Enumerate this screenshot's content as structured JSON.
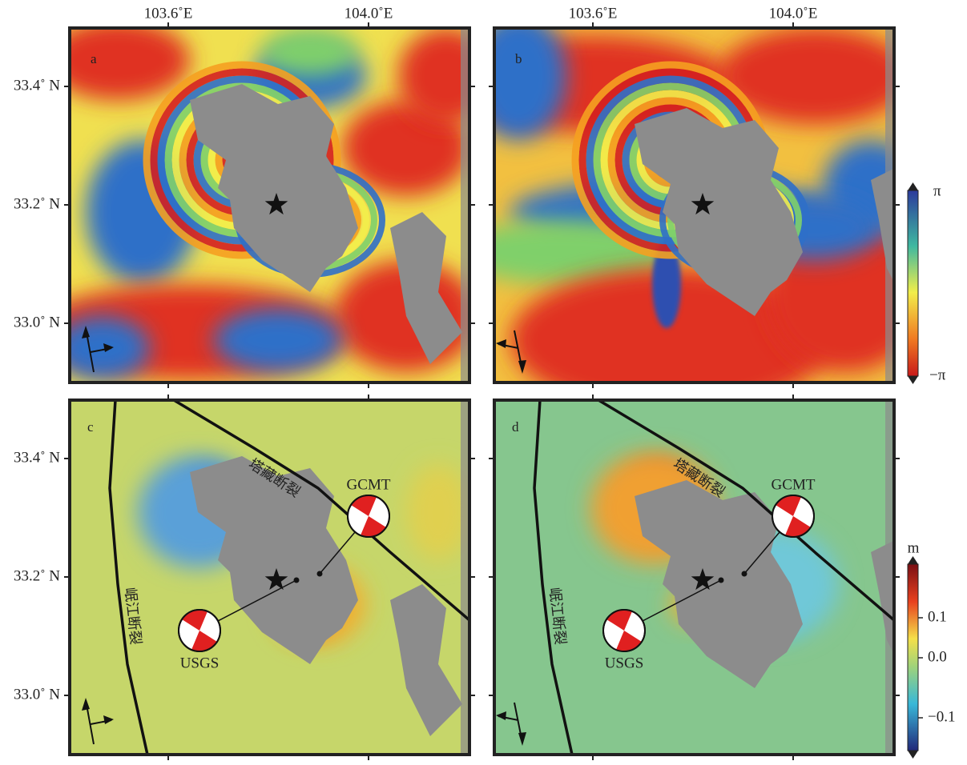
{
  "axes": {
    "longitude_labels": [
      "103.6˚E",
      "104.0˚E"
    ],
    "latitude_labels": [
      "33.4˚ N",
      "33.2˚ N",
      "33.0˚ N"
    ]
  },
  "panels": [
    {
      "label": "a"
    },
    {
      "label": "b"
    },
    {
      "label": "c"
    },
    {
      "label": "d"
    }
  ],
  "faults": {
    "tazang": "塔藏断裂",
    "minjiang": "岷江断裂"
  },
  "mechanisms": {
    "gcmt": "GCMT",
    "usgs": "USGS"
  },
  "colorbars": {
    "phase": {
      "max_label": "π",
      "min_label": "−π"
    },
    "displacement": {
      "unit": "m",
      "tick_labels": [
        "0.1",
        "0.0",
        "−0.1"
      ]
    }
  }
}
